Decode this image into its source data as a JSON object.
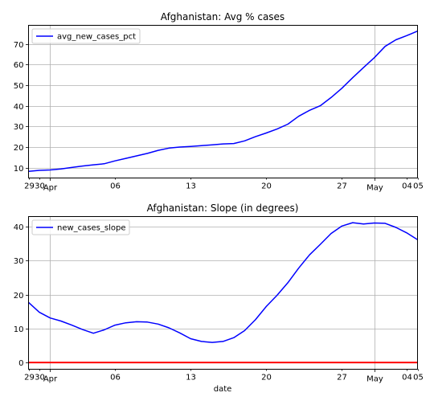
{
  "chart_data": [
    {
      "type": "line",
      "title": "Afghanistan: Avg % cases",
      "xlabel": "",
      "ylabel": "",
      "x_ticks": [
        "29",
        "30",
        "Apr",
        "06",
        "13",
        "20",
        "27",
        "May",
        "04",
        "05"
      ],
      "x_tick_days": [
        0,
        1,
        2,
        8,
        15,
        22,
        29,
        32,
        35,
        36
      ],
      "x_range_days": [
        0,
        36
      ],
      "ylim": [
        5,
        79
      ],
      "y_ticks": [
        10,
        20,
        30,
        40,
        50,
        60,
        70
      ],
      "grid": true,
      "legend_placement": "top-left",
      "series": [
        {
          "name": "avg_new_cases_pct",
          "color": "#0000ff",
          "x_days": [
            0,
            1,
            2,
            3,
            4,
            5,
            6,
            7,
            8,
            9,
            10,
            11,
            12,
            13,
            14,
            15,
            16,
            17,
            18,
            19,
            20,
            21,
            22,
            23,
            24,
            25,
            26,
            27,
            28,
            29,
            30,
            31,
            32,
            33,
            34,
            35,
            36
          ],
          "values": [
            8.2,
            8.7,
            8.9,
            9.4,
            10.1,
            10.8,
            11.4,
            11.9,
            13.3,
            14.5,
            15.7,
            16.9,
            18.4,
            19.5,
            20.0,
            20.3,
            20.7,
            21.1,
            21.5,
            21.7,
            23.0,
            25.0,
            26.8,
            28.7,
            31.1,
            34.9,
            37.8,
            40.0,
            44.0,
            48.5,
            53.6,
            58.5,
            63.3,
            68.8,
            72.0,
            74.0,
            76.2
          ]
        }
      ]
    },
    {
      "type": "line",
      "title": "Afghanistan: Slope (in degrees)",
      "xlabel": "date",
      "ylabel": "",
      "x_ticks": [
        "29",
        "30",
        "Apr",
        "06",
        "13",
        "20",
        "27",
        "May",
        "04",
        "05"
      ],
      "x_tick_days": [
        0,
        1,
        2,
        8,
        15,
        22,
        29,
        32,
        35,
        36
      ],
      "x_range_days": [
        0,
        36
      ],
      "ylim": [
        -2,
        43
      ],
      "y_ticks": [
        0,
        10,
        20,
        30,
        40
      ],
      "grid": true,
      "legend_placement": "top-left",
      "series": [
        {
          "name": "new_cases_slope",
          "color": "#0000ff",
          "x_days": [
            0,
            1,
            2,
            3,
            4,
            5,
            6,
            7,
            8,
            9,
            10,
            11,
            12,
            13,
            14,
            15,
            16,
            17,
            18,
            19,
            20,
            21,
            22,
            23,
            24,
            25,
            26,
            27,
            28,
            29,
            30,
            31,
            32,
            33,
            34,
            35,
            36
          ],
          "values": [
            17.7,
            14.8,
            13.1,
            12.2,
            11.0,
            9.7,
            8.6,
            9.6,
            11.0,
            11.7,
            12.0,
            11.9,
            11.3,
            10.2,
            8.7,
            7.0,
            6.2,
            5.9,
            6.2,
            7.3,
            9.4,
            12.6,
            16.5,
            19.8,
            23.5,
            27.8,
            31.7,
            34.8,
            38.0,
            40.2,
            41.2,
            40.8,
            41.1,
            41.0,
            39.8,
            38.2,
            36.2
          ]
        },
        {
          "name": "",
          "color": "#ff0000",
          "x_days": [
            0,
            36
          ],
          "values": [
            0,
            0
          ]
        }
      ]
    }
  ]
}
